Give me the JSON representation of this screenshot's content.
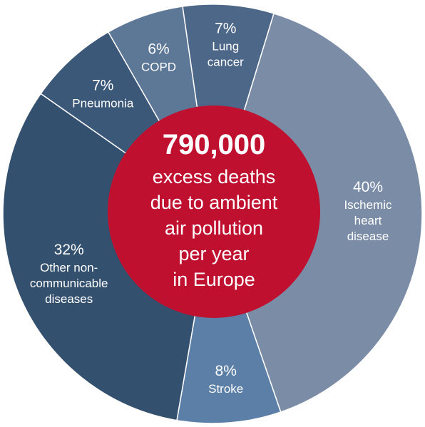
{
  "chart_data": {
    "type": "pie",
    "variant": "donut",
    "slices": [
      {
        "label": "Ischemic heart disease",
        "label_lines": [
          "Ischemic",
          "heart",
          "disease"
        ],
        "value": 40,
        "pct_text": "40%",
        "color": "#7b8da6"
      },
      {
        "label": "Stroke",
        "label_lines": [
          "Stroke"
        ],
        "value": 8,
        "pct_text": "8%",
        "color": "#5b7fa6"
      },
      {
        "label": "Other non-communicable diseases",
        "label_lines": [
          "Other non-",
          "communicable",
          "diseases"
        ],
        "value": 32,
        "pct_text": "32%",
        "color": "#34506f"
      },
      {
        "label": "Pneumonia",
        "label_lines": [
          "Pneumonia"
        ],
        "value": 7,
        "pct_text": "7%",
        "color": "#3c5878"
      },
      {
        "label": "COPD",
        "label_lines": [
          "COPD"
        ],
        "value": 6,
        "pct_text": "6%",
        "color": "#5d7797"
      },
      {
        "label": "Lung cancer",
        "label_lines": [
          "Lung",
          "cancer"
        ],
        "value": 7,
        "pct_text": "7%",
        "color": "#4c6788"
      }
    ],
    "center": {
      "headline": "790,000",
      "lines": [
        "excess deaths",
        "due to ambient",
        "air pollution",
        "per year",
        "in Europe"
      ],
      "color": "#c0102f"
    },
    "separator_color": "#ffffff"
  }
}
